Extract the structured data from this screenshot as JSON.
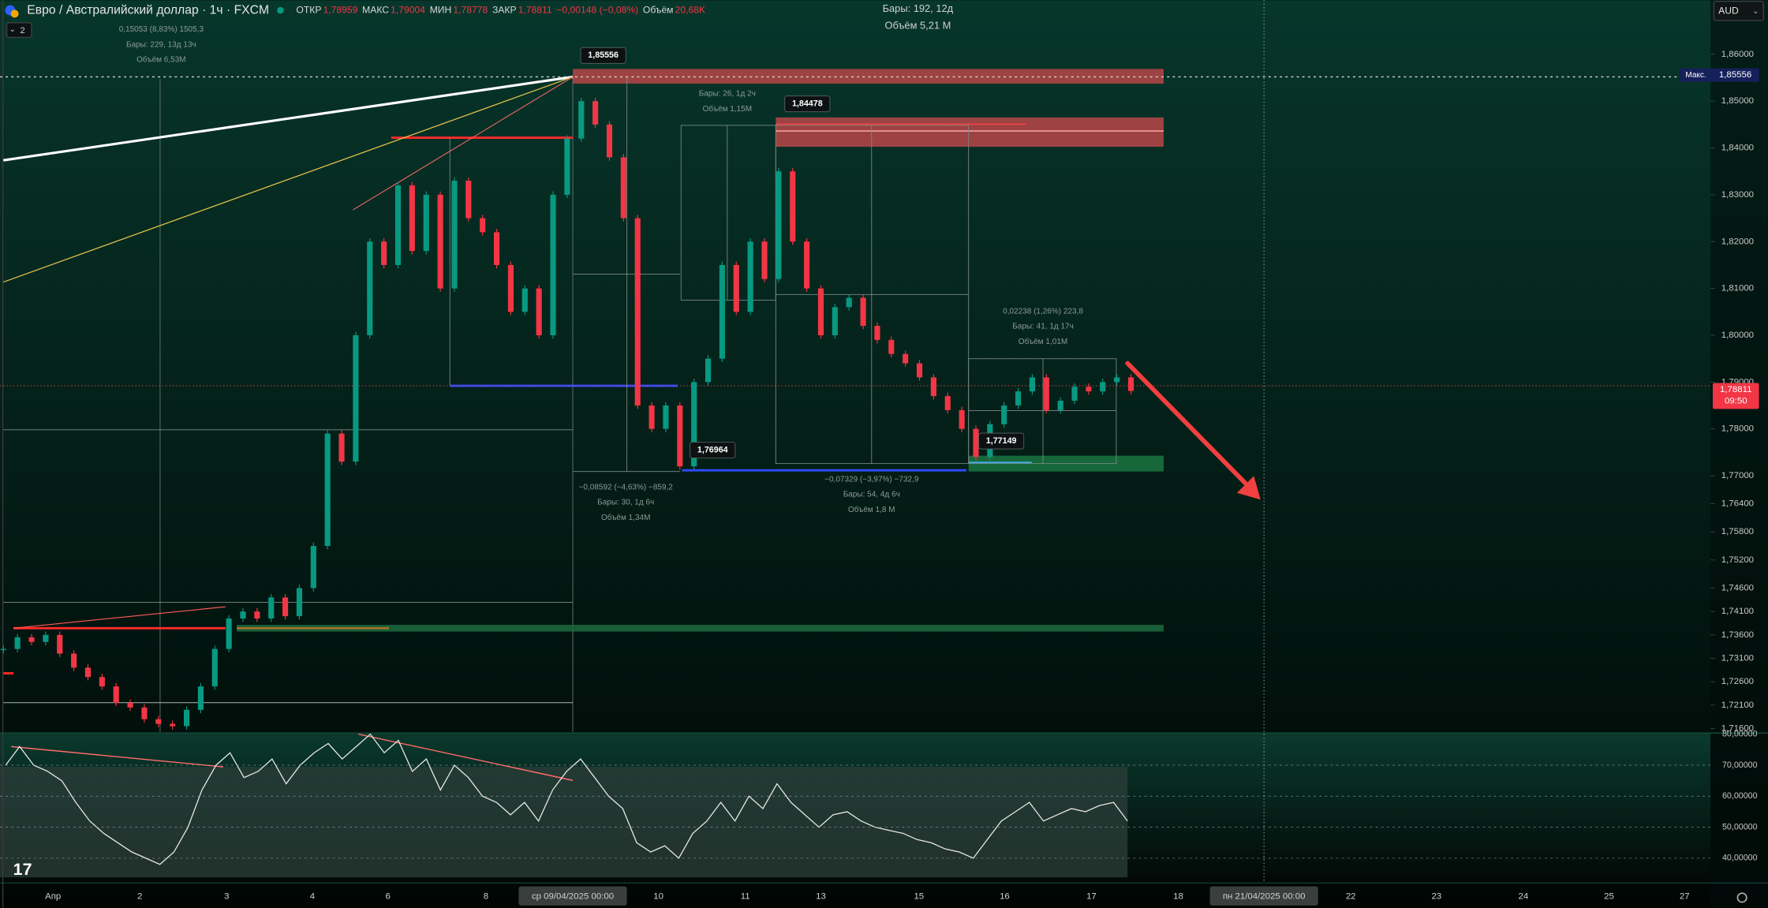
{
  "header": {
    "symbol": "Евро / Австралийский доллар · 1ч · FXCM",
    "fields": [
      {
        "label": "ОТКР",
        "value": "1,78959"
      },
      {
        "label": "МАКС",
        "value": "1,79004"
      },
      {
        "label": "МИН",
        "value": "1,78778"
      },
      {
        "label": "ЗАКР",
        "value": "1,78811"
      }
    ],
    "change": "−0,00148 (−0,08%)",
    "volume_label": "Объём",
    "volume_value": "20,68K",
    "indicator_count": "2"
  },
  "currency": "AUD",
  "top_info": [
    "Бары: 192, 12д",
    "Объём 5,21 M"
  ],
  "measures": [
    {
      "lines": [
        "0,15053 (8,83%) 1505,3",
        "Бары: 229, 13д 13ч",
        "Объём 6,53M"
      ]
    },
    {
      "lines": [
        "Бары: 26, 1д 2ч",
        "Объём 1,15M"
      ]
    },
    {
      "lines": [
        "0,02238 (1,26%) 223,8",
        "Бары: 41, 1д 17ч",
        "Объём 1,01M"
      ]
    },
    {
      "lines": [
        "−0,08592 (−4,63%) −859,2",
        "Бары: 30, 1д 6ч",
        "Объём 1,34M"
      ]
    },
    {
      "lines": [
        "−0,07329 (−3,97%) −732,9",
        "Бары: 54, 4д 6ч",
        "Объём 1,8 M"
      ]
    }
  ],
  "price_labels": [
    "1,85556",
    "1,84478",
    "1,77149",
    "1,76964"
  ],
  "price_axis": {
    "ticks": [
      {
        "value": 1.86,
        "label": "1,86000"
      },
      {
        "value": 1.85,
        "label": "1,85000"
      },
      {
        "value": 1.84,
        "label": "1,84000"
      },
      {
        "value": 1.83,
        "label": "1,83000"
      },
      {
        "value": 1.82,
        "label": "1,82000"
      },
      {
        "value": 1.81,
        "label": "1,81000"
      },
      {
        "value": 1.8,
        "label": "1,80000"
      },
      {
        "value": 1.79,
        "label": "1,79000"
      },
      {
        "value": 1.78,
        "label": "1,78000"
      },
      {
        "value": 1.77,
        "label": "1,77000"
      },
      {
        "value": 1.764,
        "label": "1,76400"
      },
      {
        "value": 1.758,
        "label": "1,75800"
      },
      {
        "value": 1.752,
        "label": "1,75200"
      },
      {
        "value": 1.746,
        "label": "1,74600"
      },
      {
        "value": 1.741,
        "label": "1,74100"
      },
      {
        "value": 1.736,
        "label": "1,73600"
      },
      {
        "value": 1.731,
        "label": "1,73100"
      },
      {
        "value": 1.726,
        "label": "1,72600"
      },
      {
        "value": 1.721,
        "label": "1,72100"
      },
      {
        "value": 1.716,
        "label": "1,71600"
      }
    ]
  },
  "price_tags": {
    "max_label": "Макс.",
    "max_value": {
      "value": 1.85556,
      "label": "1,85556"
    },
    "last_value": {
      "value": 1.78811,
      "label": "1,78811"
    },
    "countdown": "09:50"
  },
  "rsi_axis": {
    "ticks": [
      {
        "value": 80,
        "label": "80,00000"
      },
      {
        "value": 70,
        "label": "70,00000"
      },
      {
        "value": 60,
        "label": "60,00000"
      },
      {
        "value": 50,
        "label": "50,00000"
      },
      {
        "value": 40,
        "label": "40,00000"
      }
    ]
  },
  "time_axis": {
    "labels": [
      "Апр",
      "2",
      "3",
      "4",
      "6",
      "8",
      "ср 09/04/2025   00:00",
      "10",
      "11",
      "13",
      "15",
      "16",
      "17",
      "18",
      "пн 21/04/2025   00:00",
      "22",
      "23",
      "24",
      "25",
      "27"
    ]
  },
  "price_series": {
    "values": [
      1.733,
      1.7355,
      1.7345,
      1.736,
      1.732,
      1.729,
      1.727,
      1.725,
      1.7215,
      1.7205,
      1.718,
      1.717,
      1.7165,
      1.72,
      1.725,
      1.733,
      1.7395,
      1.741,
      1.7395,
      1.744,
      1.74,
      1.746,
      1.755,
      1.779,
      1.773,
      1.8,
      1.82,
      1.815,
      1.832,
      1.818,
      1.83,
      1.81,
      1.833,
      1.825,
      1.822,
      1.815,
      1.805,
      1.81,
      1.8,
      1.83,
      1.842,
      1.85,
      1.845,
      1.838,
      1.825,
      1.785,
      1.78,
      1.785,
      1.772,
      1.79,
      1.795,
      1.815,
      1.805,
      1.82,
      1.812,
      1.835,
      1.82,
      1.81,
      1.8,
      1.806,
      1.808,
      1.802,
      1.799,
      1.796,
      1.794,
      1.791,
      1.787,
      1.784,
      1.78,
      1.774,
      1.781,
      1.785,
      1.788,
      1.791,
      1.784,
      1.786,
      1.789,
      1.788,
      1.79,
      1.791,
      1.7881
    ]
  },
  "rsi_series": {
    "values": [
      70,
      76,
      70,
      68,
      65,
      58,
      52,
      48,
      45,
      42,
      40,
      38,
      42,
      50,
      62,
      70,
      74,
      66,
      68,
      72,
      64,
      70,
      74,
      77,
      72,
      76,
      80,
      74,
      78,
      68,
      72,
      62,
      70,
      66,
      60,
      58,
      54,
      58,
      52,
      62,
      68,
      72,
      66,
      60,
      56,
      45,
      42,
      44,
      40,
      48,
      52,
      58,
      52,
      60,
      56,
      64,
      58,
      54,
      50,
      54,
      55,
      52,
      50,
      49,
      48,
      46,
      45,
      43,
      42,
      40,
      46,
      52,
      55,
      58,
      52,
      54,
      56,
      55,
      57,
      58,
      52
    ]
  }
}
